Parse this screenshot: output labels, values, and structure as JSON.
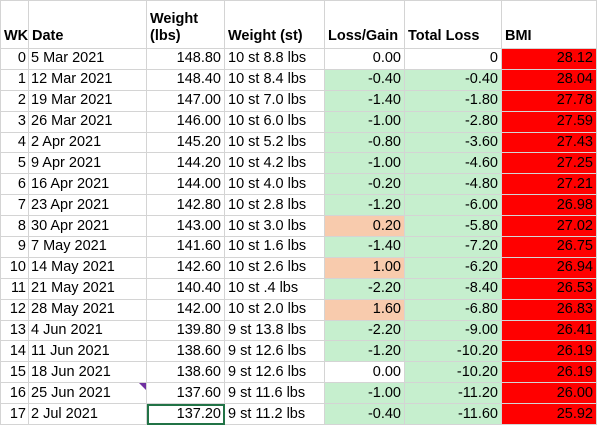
{
  "colors": {
    "gain_fill": "#f8cbad",
    "loss_fill": "#c6efce",
    "bmi_fill": "#ff0000",
    "selection": "#217346",
    "comment_marker": "#7030a0"
  },
  "headers": {
    "wk": "WK",
    "date": "Date",
    "weight": "Weight (lbs)",
    "weight_st": "Weight (st)",
    "loss_gain": "Loss/Gain",
    "total_loss": "Total Loss",
    "bmi": "BMI"
  },
  "rows": [
    {
      "wk": "0",
      "date": "5 Mar 2021",
      "weight": "148.80",
      "weight_st": "10 st 8.8 lbs",
      "loss_gain": "0.00",
      "lg_fill": "none",
      "total_loss": "0",
      "total_fill": "none",
      "bmi": "28.12"
    },
    {
      "wk": "1",
      "date": "12 Mar 2021",
      "weight": "148.40",
      "weight_st": "10 st 8.4 lbs",
      "loss_gain": "-0.40",
      "lg_fill": "green",
      "total_loss": "-0.40",
      "total_fill": "green",
      "bmi": "28.04"
    },
    {
      "wk": "2",
      "date": "19 Mar 2021",
      "weight": "147.00",
      "weight_st": "10 st 7.0 lbs",
      "loss_gain": "-1.40",
      "lg_fill": "green",
      "total_loss": "-1.80",
      "total_fill": "green",
      "bmi": "27.78"
    },
    {
      "wk": "3",
      "date": "26 Mar 2021",
      "weight": "146.00",
      "weight_st": "10 st 6.0 lbs",
      "loss_gain": "-1.00",
      "lg_fill": "green",
      "total_loss": "-2.80",
      "total_fill": "green",
      "bmi": "27.59"
    },
    {
      "wk": "4",
      "date": "2 Apr 2021",
      "weight": "145.20",
      "weight_st": "10 st 5.2 lbs",
      "loss_gain": "-0.80",
      "lg_fill": "green",
      "total_loss": "-3.60",
      "total_fill": "green",
      "bmi": "27.43"
    },
    {
      "wk": "5",
      "date": "9 Apr 2021",
      "weight": "144.20",
      "weight_st": "10 st 4.2 lbs",
      "loss_gain": "-1.00",
      "lg_fill": "green",
      "total_loss": "-4.60",
      "total_fill": "green",
      "bmi": "27.25"
    },
    {
      "wk": "6",
      "date": "16 Apr 2021",
      "weight": "144.00",
      "weight_st": "10 st 4.0 lbs",
      "loss_gain": "-0.20",
      "lg_fill": "green",
      "total_loss": "-4.80",
      "total_fill": "green",
      "bmi": "27.21"
    },
    {
      "wk": "7",
      "date": "23 Apr 2021",
      "weight": "142.80",
      "weight_st": "10 st 2.8 lbs",
      "loss_gain": "-1.20",
      "lg_fill": "green",
      "total_loss": "-6.00",
      "total_fill": "green",
      "bmi": "26.98"
    },
    {
      "wk": "8",
      "date": "30 Apr 2021",
      "weight": "143.00",
      "weight_st": "10 st 3.0 lbs",
      "loss_gain": "0.20",
      "lg_fill": "orange",
      "total_loss": "-5.80",
      "total_fill": "green",
      "bmi": "27.02"
    },
    {
      "wk": "9",
      "date": "7 May 2021",
      "weight": "141.60",
      "weight_st": "10 st 1.6 lbs",
      "loss_gain": "-1.40",
      "lg_fill": "green",
      "total_loss": "-7.20",
      "total_fill": "green",
      "bmi": "26.75"
    },
    {
      "wk": "10",
      "date": "14 May 2021",
      "weight": "142.60",
      "weight_st": "10 st 2.6 lbs",
      "loss_gain": "1.00",
      "lg_fill": "orange",
      "total_loss": "-6.20",
      "total_fill": "green",
      "bmi": "26.94"
    },
    {
      "wk": "11",
      "date": "21 May 2021",
      "weight": "140.40",
      "weight_st": "10 st .4 lbs",
      "loss_gain": "-2.20",
      "lg_fill": "green",
      "total_loss": "-8.40",
      "total_fill": "green",
      "bmi": "26.53"
    },
    {
      "wk": "12",
      "date": "28 May 2021",
      "weight": "142.00",
      "weight_st": "10 st 2.0 lbs",
      "loss_gain": "1.60",
      "lg_fill": "orange",
      "total_loss": "-6.80",
      "total_fill": "green",
      "bmi": "26.83"
    },
    {
      "wk": "13",
      "date": "4 Jun 2021",
      "weight": "139.80",
      "weight_st": "9 st 13.8 lbs",
      "loss_gain": "-2.20",
      "lg_fill": "green",
      "total_loss": "-9.00",
      "total_fill": "green",
      "bmi": "26.41"
    },
    {
      "wk": "14",
      "date": "11 Jun 2021",
      "weight": "138.60",
      "weight_st": "9 st 12.6 lbs",
      "loss_gain": "-1.20",
      "lg_fill": "green",
      "total_loss": "-10.20",
      "total_fill": "green",
      "bmi": "26.19"
    },
    {
      "wk": "15",
      "date": "18 Jun 2021",
      "weight": "138.60",
      "weight_st": "9 st 12.6 lbs",
      "loss_gain": "0.00",
      "lg_fill": "none",
      "total_loss": "-10.20",
      "total_fill": "green",
      "bmi": "26.19"
    },
    {
      "wk": "16",
      "date": "25 Jun 2021",
      "weight": "137.60",
      "weight_st": "9 st 11.6 lbs",
      "loss_gain": "-1.00",
      "lg_fill": "green",
      "total_loss": "-11.20",
      "total_fill": "green",
      "bmi": "26.00"
    },
    {
      "wk": "17",
      "date": "2 Jul 2021",
      "weight": "137.20",
      "weight_st": "9 st 11.2 lbs",
      "loss_gain": "-0.40",
      "lg_fill": "green",
      "total_loss": "-11.60",
      "total_fill": "green",
      "bmi": "25.92"
    }
  ],
  "selected_cell": {
    "row": 17,
    "column": "weight"
  },
  "comment_cell": {
    "row": 16,
    "column": "date"
  }
}
